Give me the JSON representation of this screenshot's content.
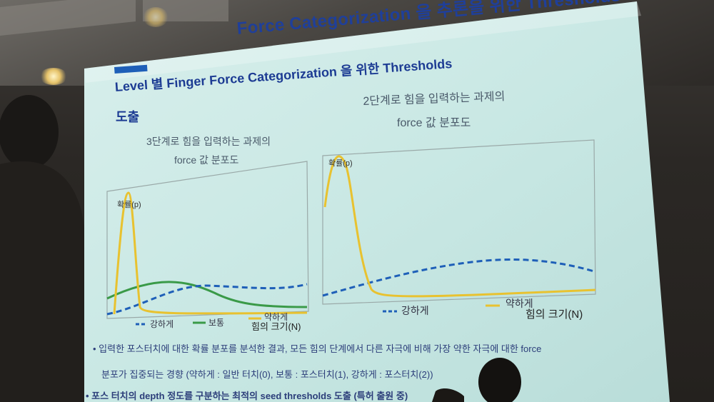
{
  "slide": {
    "title_line1": "Force Categorization 을 추론을 위한 Thresholds",
    "section_heading_line1": "Level 별 Finger Force Categorization 을 위한 Thresholds",
    "section_heading_line2": "도출",
    "left_chart": {
      "caption_line1": "3단계로 힘을 입력하는 과제의",
      "caption_line2": "force 값 분포도",
      "y_axis_label": "확률(p)",
      "x_axis_label": "힘의 크기(N)",
      "legend": [
        {
          "label": "강하게",
          "color": "#1e5fb8",
          "style": "dashed"
        },
        {
          "label": "보통",
          "color": "#3a9a48",
          "style": "solid"
        },
        {
          "label": "약하게",
          "color": "#e8c230",
          "style": "solid"
        }
      ]
    },
    "right_chart": {
      "caption_line1": "2단계로 힘을 입력하는 과제의",
      "caption_line2": "force 값 분포도",
      "y_axis_label": "확률(p)",
      "x_axis_label": "힘의 크기(N)",
      "legend": [
        {
          "label": "강하게",
          "color": "#1e5fb8",
          "style": "dashed"
        },
        {
          "label": "약하게",
          "color": "#e8c230",
          "style": "solid"
        }
      ]
    },
    "bullets": [
      "입력한 포스터치에 대한 확률 분포를 분석한 결과, 모든 힘의 단계에서 다른 자극에 비해 가장 약한 자극에 대한 force",
      "분포가 집중되는 경향 (약하게 : 일반 터치(0), 보통 : 포스터치(1), 강하게 : 포스터치(2))",
      "포스 터치의 depth 정도를 구분하는 최적의 seed thresholds 도출 (특허 출원 중)"
    ],
    "colors": {
      "screen": "#cfe9e6",
      "title": "#1f3f9a",
      "accent": "#1e5fb8"
    }
  }
}
